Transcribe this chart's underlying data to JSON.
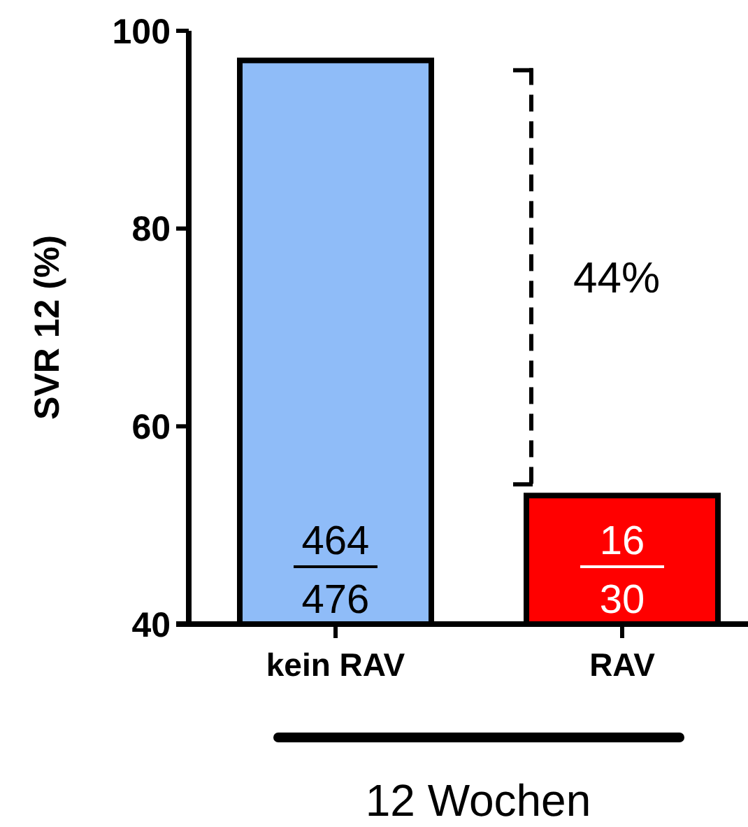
{
  "chart_data": {
    "type": "bar",
    "categories": [
      "kein RAV",
      "RAV"
    ],
    "values": [
      97,
      53
    ],
    "colors": [
      "#8fbcf8",
      "#ff0000"
    ],
    "ylabel": "SVR 12 (%)",
    "xlabel": "12 Wochen",
    "ylim": [
      40,
      100
    ],
    "yticks": [
      40,
      60,
      80,
      100
    ],
    "grid": false,
    "annotations": [
      "44%",
      "464",
      "476",
      "16",
      "30"
    ]
  }
}
